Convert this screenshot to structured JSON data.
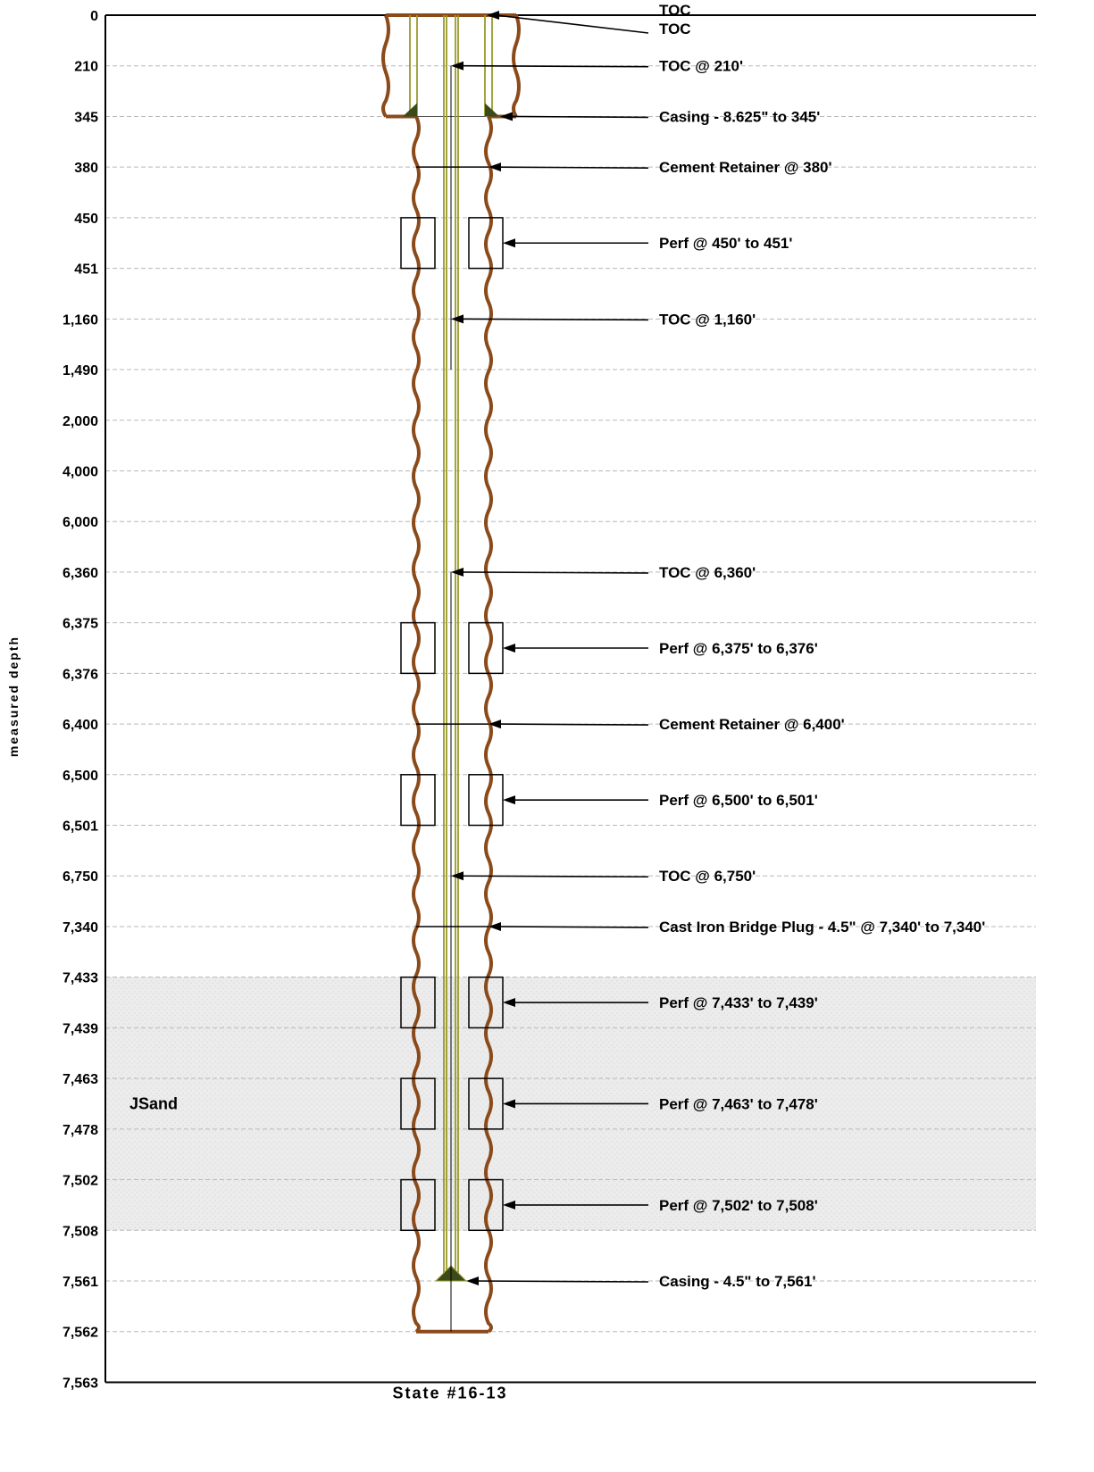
{
  "diagram": {
    "well_name": "State #16-13",
    "y_axis_title": "measured depth",
    "depth_ticks": [
      "0",
      "210",
      "345",
      "380",
      "450",
      "451",
      "1,160",
      "1,490",
      "2,000",
      "4,000",
      "6,000",
      "6,360",
      "6,375",
      "6,376",
      "6,400",
      "6,500",
      "6,501",
      "6,750",
      "7,340",
      "7,433",
      "7,439",
      "7,463",
      "7,478",
      "7,502",
      "7,508",
      "7,561",
      "7,562",
      "7,563"
    ],
    "formation": {
      "name": "JSand",
      "top_depth": "7,433",
      "bottom_depth": "7,508"
    },
    "annotations": [
      {
        "id": "toc-surface",
        "lines": [
          "TOC",
          "TOC"
        ],
        "depth": "0",
        "target": "surface-annulus"
      },
      {
        "id": "toc-210",
        "lines": [
          "TOC @ 210'"
        ],
        "depth": "210",
        "target": "inner"
      },
      {
        "id": "casing-surface",
        "lines": [
          "Casing - 8.625\" to 345'"
        ],
        "depth": "345",
        "target": "surface-shoe"
      },
      {
        "id": "cement-retainer-380",
        "lines": [
          "Cement Retainer @ 380'"
        ],
        "depth": "380",
        "target": "hole"
      },
      {
        "id": "perf-450",
        "lines": [
          "Perf @ 450' to 451'"
        ],
        "depth": "450",
        "target": "perf"
      },
      {
        "id": "toc-1160",
        "lines": [
          "TOC @ 1,160'"
        ],
        "depth": "1,160",
        "target": "inner"
      },
      {
        "id": "toc-6360",
        "lines": [
          "TOC @ 6,360'"
        ],
        "depth": "6,360",
        "target": "inner"
      },
      {
        "id": "perf-6375",
        "lines": [
          "Perf @ 6,375' to 6,376'"
        ],
        "depth": "6,375",
        "target": "perf"
      },
      {
        "id": "cement-retainer-6400",
        "lines": [
          "Cement Retainer @ 6,400'"
        ],
        "depth": "6,400",
        "target": "hole"
      },
      {
        "id": "perf-6500",
        "lines": [
          "Perf @ 6,500' to 6,501'"
        ],
        "depth": "6,500",
        "target": "perf"
      },
      {
        "id": "toc-6750",
        "lines": [
          "TOC @ 6,750'"
        ],
        "depth": "6,750",
        "target": "inner"
      },
      {
        "id": "bridge-plug-7340",
        "lines": [
          "Cast Iron Bridge Plug - 4.5\" @ 7,340' to 7,340'"
        ],
        "depth": "7,340",
        "target": "hole"
      },
      {
        "id": "perf-7433",
        "lines": [
          "Perf @ 7,433' to 7,439'"
        ],
        "depth": "7,433",
        "target": "perf"
      },
      {
        "id": "perf-7463",
        "lines": [
          "Perf @ 7,463' to 7,478'"
        ],
        "depth": "7,463",
        "target": "perf"
      },
      {
        "id": "perf-7502",
        "lines": [
          "Perf @ 7,502' to 7,508'"
        ],
        "depth": "7,502",
        "target": "perf"
      },
      {
        "id": "casing-production",
        "lines": [
          "Casing - 4.5\" to 7,561'"
        ],
        "depth": "7,561",
        "target": "prod-shoe"
      }
    ],
    "components": {
      "surface_casing": {
        "size": "8.625\"",
        "shoe_depth": "345"
      },
      "production_casing": {
        "size": "4.5\"",
        "shoe_depth": "7,561"
      },
      "cement_retainers": [
        "380",
        "6,400"
      ],
      "bridge_plug": "7,340",
      "perforations": [
        [
          "450",
          "451"
        ],
        [
          "6,375",
          "6,376"
        ],
        [
          "6,500",
          "6,501"
        ],
        [
          "7,433",
          "7,439"
        ],
        [
          "7,463",
          "7,478"
        ],
        [
          "7,502",
          "7,508"
        ]
      ],
      "toc_depths": [
        "0",
        "210",
        "1,160",
        "6,360",
        "6,750"
      ]
    },
    "colors": {
      "hole": "#8b4a1a",
      "casing": "#9a9a2a",
      "shoe": "#3a4a1a",
      "grid": "#b8b8b8",
      "formation": "#e8e8e8"
    }
  }
}
